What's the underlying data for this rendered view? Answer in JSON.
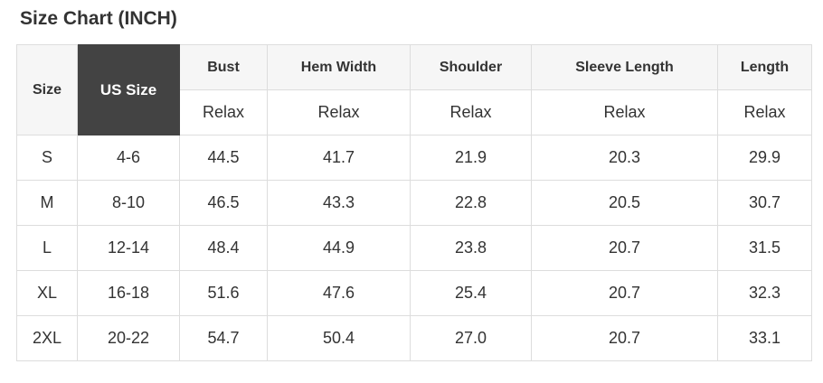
{
  "title": "Size Chart (INCH)",
  "colors": {
    "title_text": "#333333",
    "header_background": "#f6f6f6",
    "us_size_header_background": "#434343",
    "us_size_header_text": "#ffffff",
    "cell_text": "#333333",
    "border": "#dddddd",
    "row_background": "#ffffff"
  },
  "chart_data": {
    "type": "table",
    "title": "Size Chart (INCH)",
    "columns": [
      "Size",
      "US Size",
      "Bust",
      "Hem Width",
      "Shoulder",
      "Sleeve Length",
      "Length"
    ],
    "fit_row": [
      "Relax",
      "Relax",
      "Relax",
      "Relax",
      "Relax"
    ],
    "rows": [
      [
        "S",
        "4-6",
        "44.5",
        "41.7",
        "21.9",
        "20.3",
        "29.9"
      ],
      [
        "M",
        "8-10",
        "46.5",
        "43.3",
        "22.8",
        "20.5",
        "30.7"
      ],
      [
        "L",
        "12-14",
        "48.4",
        "44.9",
        "23.8",
        "20.7",
        "31.5"
      ],
      [
        "XL",
        "16-18",
        "51.6",
        "47.6",
        "25.4",
        "20.7",
        "32.3"
      ],
      [
        "2XL",
        "20-22",
        "54.7",
        "50.4",
        "27.0",
        "20.7",
        "33.1"
      ]
    ]
  }
}
